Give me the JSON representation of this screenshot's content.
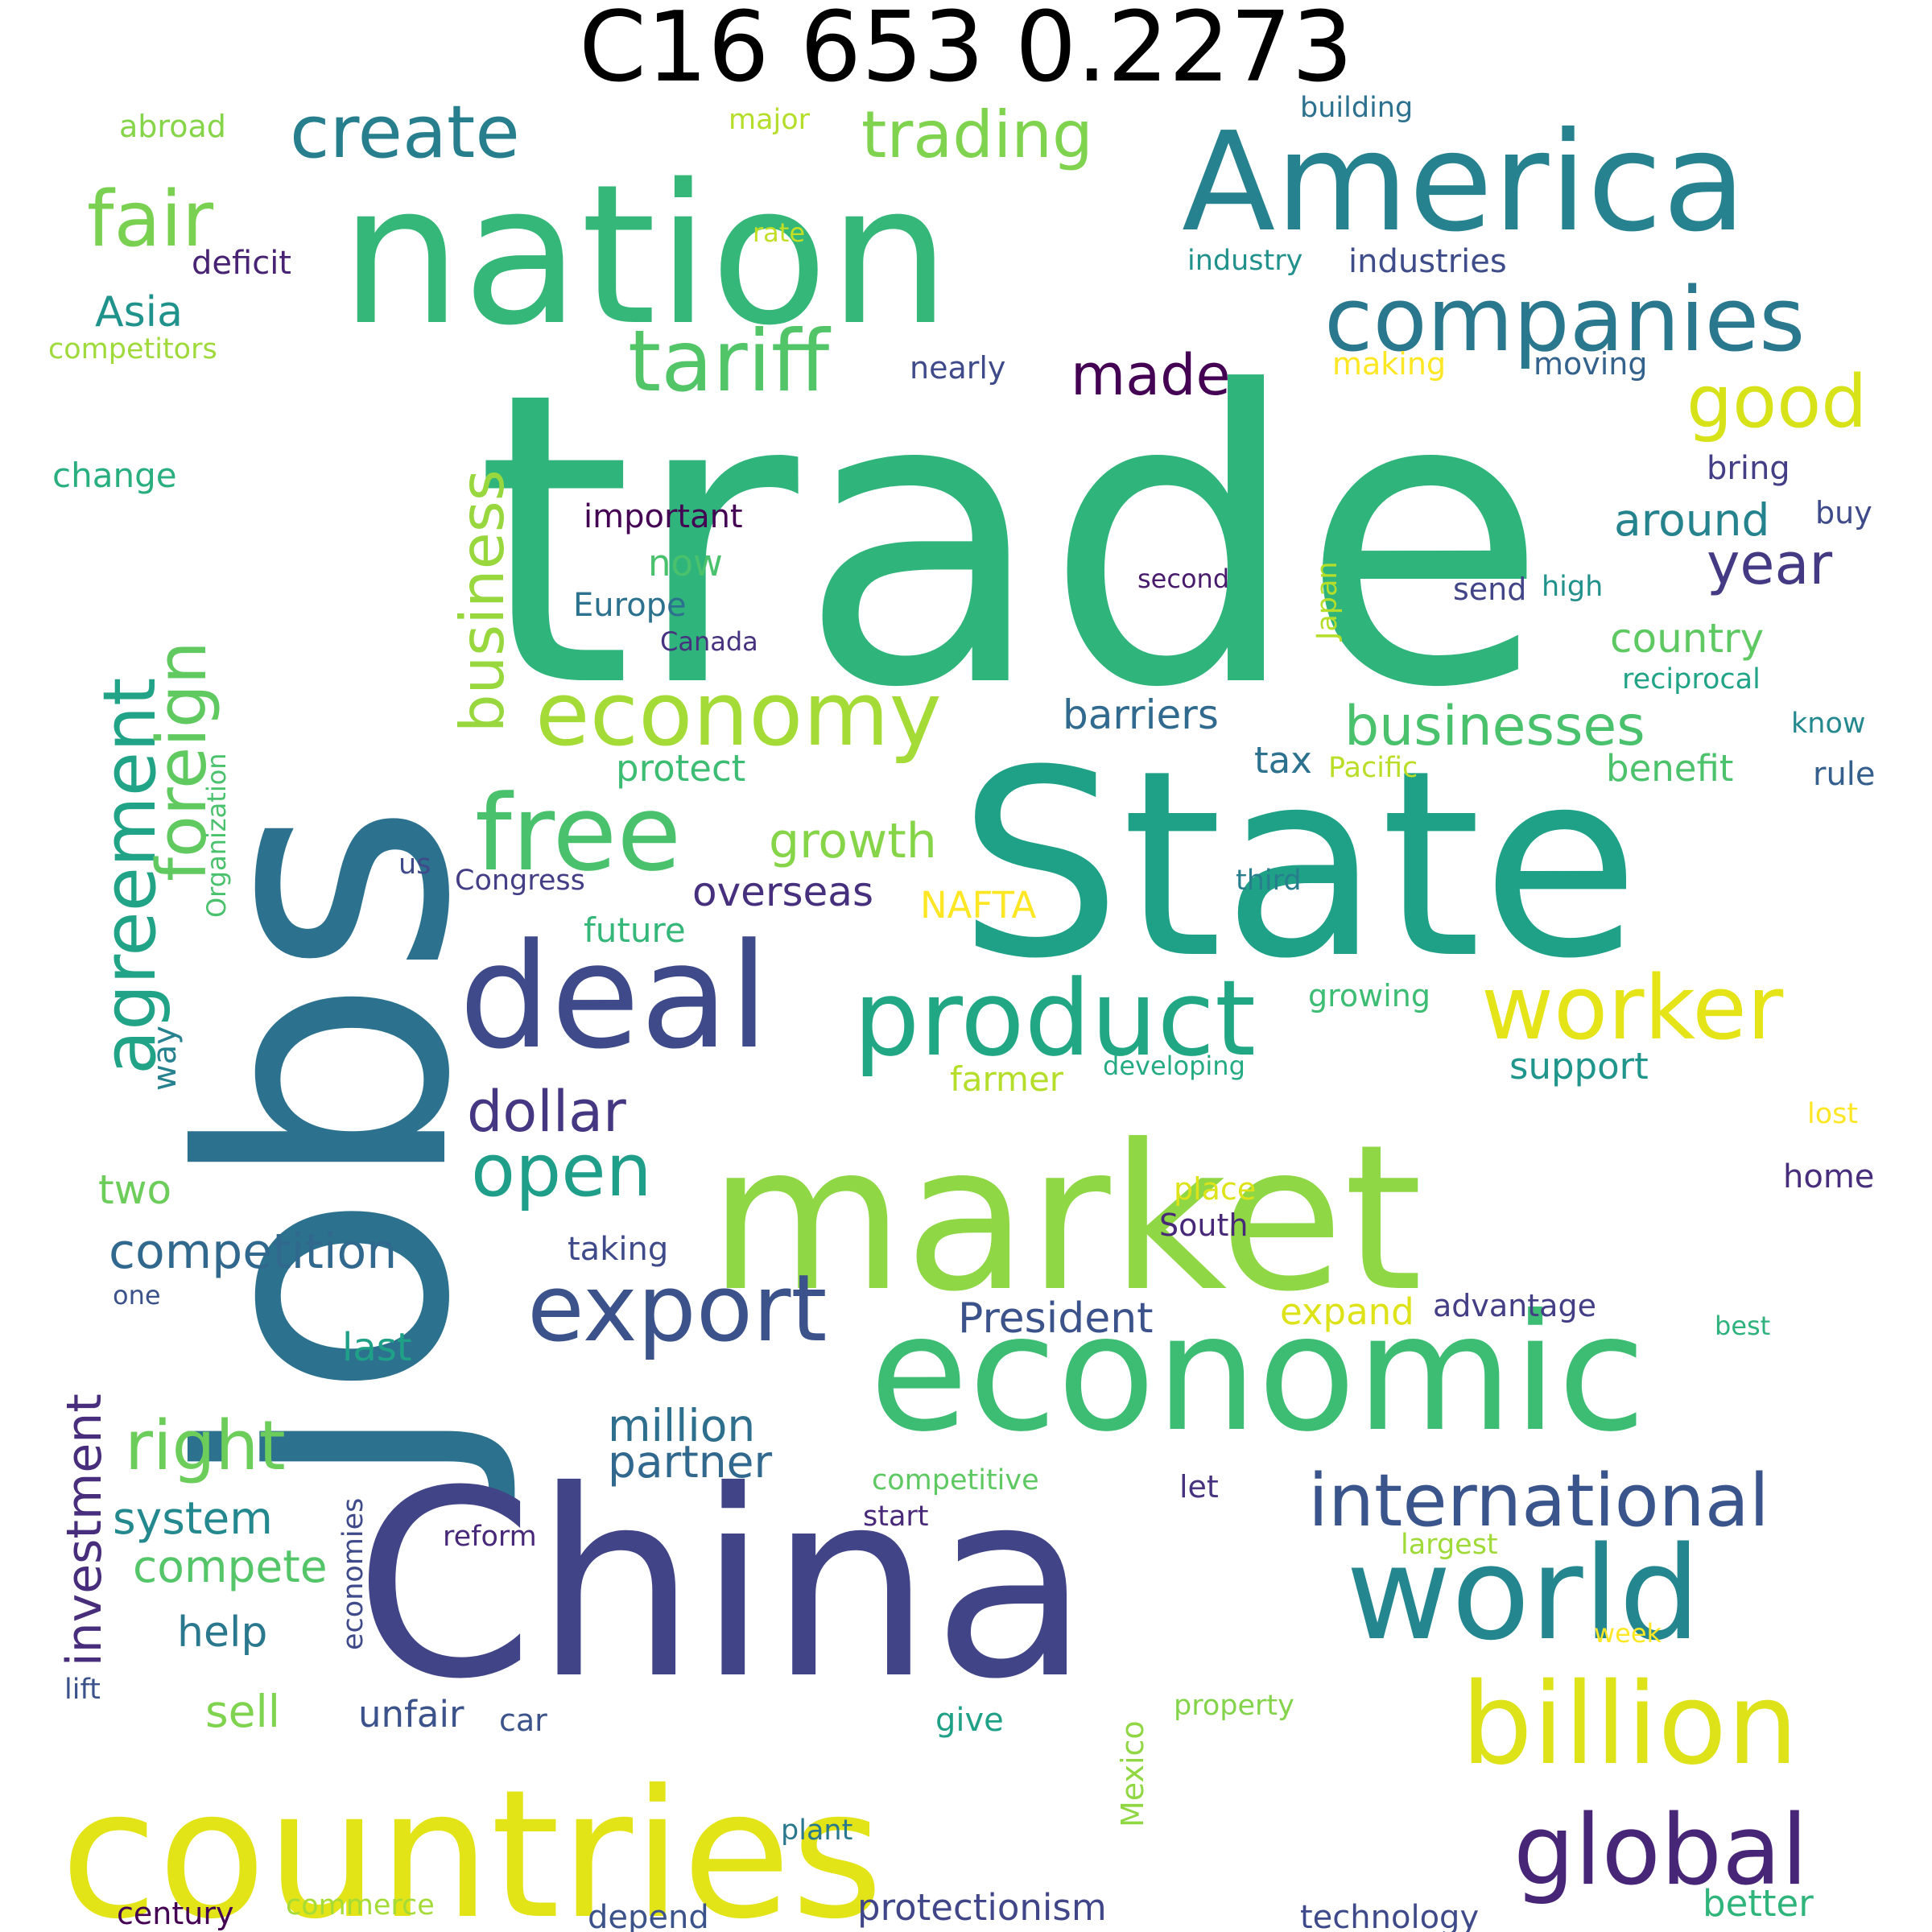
{
  "title": "C16 653 0.2273",
  "words": [
    {
      "text": "trade",
      "color": "#2fb47c"
    },
    {
      "text": "State",
      "color": "#1fa187"
    },
    {
      "text": "jobs",
      "color": "#2c728e"
    },
    {
      "text": "China",
      "color": "#414487"
    },
    {
      "text": "nation",
      "color": "#35b779"
    },
    {
      "text": "market",
      "color": "#8fd744"
    },
    {
      "text": "America",
      "color": "#26828e"
    },
    {
      "text": "countries",
      "color": "#e2e418"
    },
    {
      "text": "economic",
      "color": "#3dbc74"
    },
    {
      "text": "deal",
      "color": "#3e4a89"
    },
    {
      "text": "world",
      "color": "#24868e"
    },
    {
      "text": "companies",
      "color": "#2a788e"
    },
    {
      "text": "product",
      "color": "#22a785"
    },
    {
      "text": "economy",
      "color": "#a5db36"
    },
    {
      "text": "free",
      "color": "#4ac16d"
    },
    {
      "text": "billion",
      "color": "#dde318"
    },
    {
      "text": "global",
      "color": "#482677"
    },
    {
      "text": "export",
      "color": "#3b528b"
    },
    {
      "text": "international",
      "color": "#3a548c"
    },
    {
      "text": "worker",
      "color": "#e5e419"
    },
    {
      "text": "agreement",
      "color": "#20a386"
    },
    {
      "text": "foreign",
      "color": "#60ca60"
    },
    {
      "text": "tariff",
      "color": "#52c569"
    },
    {
      "text": "trading",
      "color": "#7fd34e"
    },
    {
      "text": "create",
      "color": "#277f8e"
    },
    {
      "text": "fair",
      "color": "#7ad151"
    },
    {
      "text": "business",
      "color": "#98d83e"
    },
    {
      "text": "businesses",
      "color": "#4ac16d"
    },
    {
      "text": "good",
      "color": "#d8e219"
    },
    {
      "text": "made",
      "color": "#440154"
    },
    {
      "text": "year",
      "color": "#443a83"
    },
    {
      "text": "open",
      "color": "#1f9e89"
    },
    {
      "text": "investment",
      "color": "#472d7b"
    },
    {
      "text": "right",
      "color": "#6ccd5a"
    },
    {
      "text": "dollar",
      "color": "#453781"
    },
    {
      "text": "competition",
      "color": "#31688e"
    },
    {
      "text": "million",
      "color": "#2e6f8e"
    },
    {
      "text": "around",
      "color": "#25838e"
    },
    {
      "text": "Asia",
      "color": "#20928c"
    },
    {
      "text": "growth",
      "color": "#86d549"
    },
    {
      "text": "barriers",
      "color": "#306a8e"
    },
    {
      "text": "overseas",
      "color": "#46307e"
    },
    {
      "text": "President",
      "color": "#3b528b"
    },
    {
      "text": "country",
      "color": "#5ec962"
    },
    {
      "text": "system",
      "color": "#23898e"
    },
    {
      "text": "compete",
      "color": "#54c568"
    },
    {
      "text": "partner",
      "color": "#31688e"
    },
    {
      "text": "deficit",
      "color": "#482374"
    },
    {
      "text": "industries",
      "color": "#3e4c8a"
    },
    {
      "text": "support",
      "color": "#1f958b"
    },
    {
      "text": "NAFTA",
      "color": "#fde725"
    },
    {
      "text": "protect",
      "color": "#3dbc74"
    },
    {
      "text": "future",
      "color": "#35b779"
    },
    {
      "text": "tax",
      "color": "#2c728e"
    },
    {
      "text": "benefit",
      "color": "#4cc26c"
    },
    {
      "text": "sell",
      "color": "#7fd34e"
    },
    {
      "text": "help",
      "color": "#2a788e"
    },
    {
      "text": "two",
      "color": "#6ccd5a"
    },
    {
      "text": "last",
      "color": "#1fa187"
    },
    {
      "text": "expand",
      "color": "#dde318"
    },
    {
      "text": "advantage",
      "color": "#433e85"
    },
    {
      "text": "now",
      "color": "#4ac16d"
    },
    {
      "text": "Europe",
      "color": "#2c728e"
    },
    {
      "text": "important",
      "color": "#440154"
    },
    {
      "text": "unfair",
      "color": "#3b528b"
    },
    {
      "text": "better",
      "color": "#2fb47c"
    },
    {
      "text": "protectionism",
      "color": "#404688"
    },
    {
      "text": "taking",
      "color": "#3e4a89"
    },
    {
      "text": "give",
      "color": "#1fa187"
    },
    {
      "text": "rule",
      "color": "#355f8d"
    },
    {
      "text": "bring",
      "color": "#433e85"
    },
    {
      "text": "buy",
      "color": "#3e4a89"
    },
    {
      "text": "home",
      "color": "#472d7b"
    },
    {
      "text": "farmer",
      "color": "#b5de2b"
    },
    {
      "text": "way",
      "color": "#26828e"
    },
    {
      "text": "change",
      "color": "#29af7f"
    },
    {
      "text": "send",
      "color": "#414487"
    },
    {
      "text": "high",
      "color": "#21918c"
    },
    {
      "text": "growing",
      "color": "#3dbc74"
    },
    {
      "text": "century",
      "color": "#440154"
    },
    {
      "text": "depend",
      "color": "#3b528b"
    },
    {
      "text": "technology",
      "color": "#3e4a89"
    },
    {
      "text": "making",
      "color": "#fde725"
    },
    {
      "text": "moving",
      "color": "#33638d"
    },
    {
      "text": "nearly",
      "color": "#3e4a89"
    },
    {
      "text": "industry",
      "color": "#21918c"
    },
    {
      "text": "building",
      "color": "#2c728e"
    },
    {
      "text": "abroad",
      "color": "#86d549"
    },
    {
      "text": "major",
      "color": "#b5de2b"
    },
    {
      "text": "rate",
      "color": "#c2df23"
    },
    {
      "text": "competitors",
      "color": "#9fda3a"
    },
    {
      "text": "Canada",
      "color": "#46327e"
    },
    {
      "text": "second",
      "color": "#481b6d"
    },
    {
      "text": "Japan",
      "color": "#b5de2b"
    },
    {
      "text": "reciprocal",
      "color": "#20a386"
    },
    {
      "text": "know",
      "color": "#23898e"
    },
    {
      "text": "Pacific",
      "color": "#bade28"
    },
    {
      "text": "Organization",
      "color": "#4ac16d"
    },
    {
      "text": "us",
      "color": "#3e4a89"
    },
    {
      "text": "Congress",
      "color": "#433e85"
    },
    {
      "text": "third",
      "color": "#277f8e"
    },
    {
      "text": "developing",
      "color": "#25ab82"
    },
    {
      "text": "lost",
      "color": "#fde725"
    },
    {
      "text": "place",
      "color": "#dde318"
    },
    {
      "text": "South",
      "color": "#482878"
    },
    {
      "text": "one",
      "color": "#3b528b"
    },
    {
      "text": "best",
      "color": "#2db27d"
    },
    {
      "text": "competitive",
      "color": "#5ec962"
    },
    {
      "text": "let",
      "color": "#46327e"
    },
    {
      "text": "reform",
      "color": "#482878"
    },
    {
      "text": "start",
      "color": "#482878"
    },
    {
      "text": "largest",
      "color": "#a0da39"
    },
    {
      "text": "economies",
      "color": "#3e4a89"
    },
    {
      "text": "week",
      "color": "#fde725"
    },
    {
      "text": "lift",
      "color": "#3b528b"
    },
    {
      "text": "car",
      "color": "#3b528b"
    },
    {
      "text": "Mexico",
      "color": "#90d743"
    },
    {
      "text": "property",
      "color": "#84d44b"
    },
    {
      "text": "plant",
      "color": "#2a788e"
    },
    {
      "text": "commerce",
      "color": "#a5db36"
    }
  ]
}
